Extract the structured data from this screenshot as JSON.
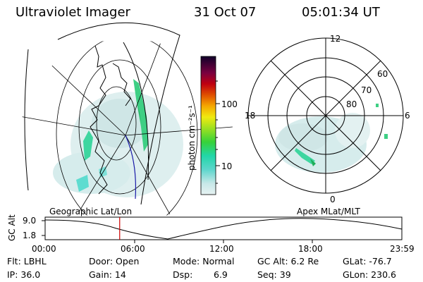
{
  "header": {
    "instrument": "Ultraviolet Imager",
    "date": "31 Oct 07",
    "time": "05:01:34 UT"
  },
  "colorbar": {
    "unit_label": "photon cm⁻²s⁻¹",
    "ticks": [
      "100",
      "10"
    ],
    "scale": "log"
  },
  "polar_plot": {
    "clock_labels": [
      "12",
      "18",
      "6",
      "0"
    ],
    "lat_labels": [
      "60",
      "70",
      "80"
    ]
  },
  "panels": {
    "left_label": "Geographic Lat/Lon",
    "right_label": "Apex MLat/MLT"
  },
  "altitude_plot": {
    "axis_label": "GC Alt",
    "y_ticks": [
      "9.0",
      "1.8"
    ],
    "x_ticks": [
      "00:00",
      "06:00",
      "12:00",
      "18:00",
      "23:59"
    ],
    "current_time_fraction": 0.209,
    "marker_color": "#cc0000"
  },
  "footer": {
    "flt": "Flt: LBHL",
    "ip": "IP: 36.0",
    "door": "Door: Open",
    "gain": "Gain: 14",
    "mode": "Mode: Normal",
    "dsp_label": "Dsp:",
    "dsp_value": "6.9",
    "gc_alt": "GC Alt: 6.2 Re",
    "seq": "Seq: 39",
    "glat": "GLat: -76.7",
    "glon": "GLon: 230.6"
  }
}
